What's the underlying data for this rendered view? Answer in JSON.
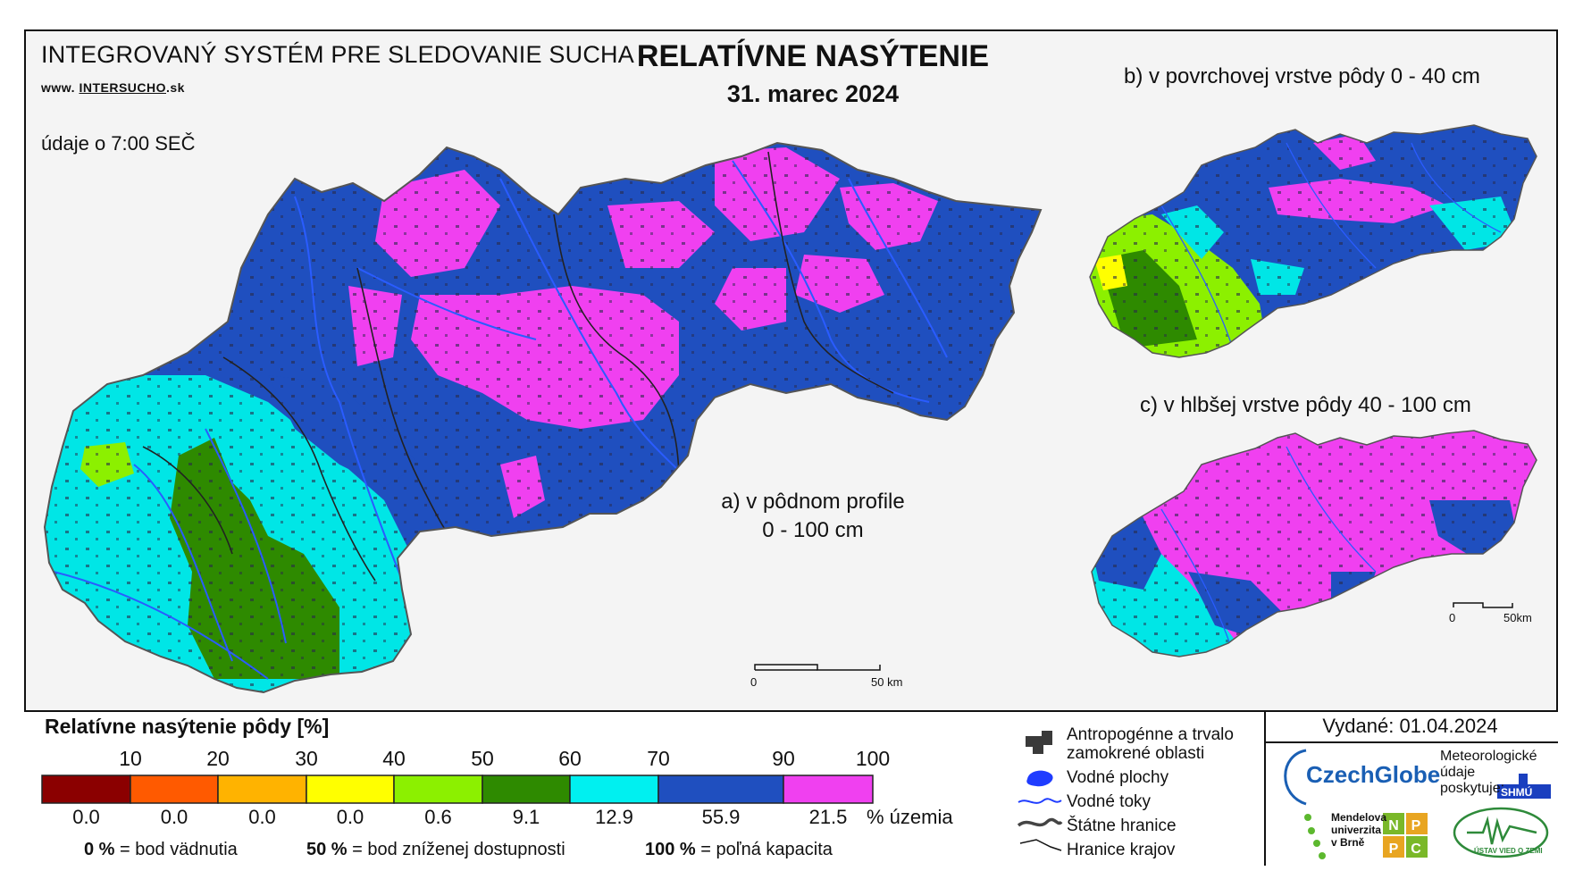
{
  "header": {
    "system_title": "INTEGROVANÝ SYSTÉM PRE SLEDOVANIE SUCHA",
    "website_prefix": "www.",
    "website_name": "INTERSUCHO",
    "website_suffix": ".sk",
    "observation_time": "údaje o 7:00 SEČ"
  },
  "title": {
    "main": "RELATÍVNE NASÝTENIE",
    "date": "31. marec 2024"
  },
  "maps": {
    "a_label_line1": "a) v pôdnom profile",
    "a_label_line2": "0 - 100 cm",
    "b_label": "b) v povrchovej vrstve pôdy 0 - 40 cm",
    "c_label": "c) v hlbšej vrstve pôdy 40 - 100 cm",
    "scale_main_zero": "0",
    "scale_main_km": "50 km",
    "scale_small_zero": "0",
    "scale_small_km": "50km"
  },
  "legend": {
    "title": "Relatívne nasýtenie pôdy [%]",
    "ticks": [
      "10",
      "20",
      "30",
      "40",
      "50",
      "60",
      "70",
      "90",
      "100"
    ],
    "classes": [
      {
        "color": "#8b0000",
        "share": "0.0"
      },
      {
        "color": "#ff5a00",
        "share": "0.0"
      },
      {
        "color": "#ffb300",
        "share": "0.0"
      },
      {
        "color": "#ffff00",
        "share": "0.0"
      },
      {
        "color": "#8cf000",
        "share": "0.6"
      },
      {
        "color": "#2e8a00",
        "share": "9.1"
      },
      {
        "color": "#00f0f0",
        "share": "12.9"
      },
      {
        "color": "#1f4fbf",
        "share": "55.9"
      },
      {
        "color": "#f040f0",
        "share": "21.5"
      }
    ],
    "share_unit": "% územia",
    "note1_value": "0 %",
    "note1_text": "= bod vädnutia",
    "note2_value": "50 %",
    "note2_text": "= bod zníženej dostupnosti",
    "note3_value": "100 %",
    "note3_text": "= poľná kapacita"
  },
  "symbols": {
    "anthropogenic_line1": "Antropogénne a trvalo",
    "anthropogenic_line2": "zamokrené oblasti",
    "water_bodies": "Vodné plochy",
    "water_streams": "Vodné toky",
    "state_border": "Štátne hranice",
    "region_border": "Hranice krajov"
  },
  "footer": {
    "issued": "Vydané: 01.04.2024",
    "czechglobe": "CzechGlobe",
    "met_line1": "Meteorologické",
    "met_line2": "údaje",
    "met_line3": "poskytuje:",
    "shmu": "SHMÚ",
    "mendel_line1": "Mendelova",
    "mendel_line2": "univerzita",
    "mendel_line3": "v Brně",
    "nppc": [
      "N",
      "P",
      "P",
      "C"
    ],
    "ustav": "ÚSTAV VIED O ZEMI"
  },
  "colors": {
    "magenta": "#f040f0",
    "blue": "#1f4fbf",
    "cyan": "#00f0f0",
    "dark_green": "#2e8a00",
    "light_green": "#8cf000",
    "yellow": "#ffff00",
    "water": "#1f3cff"
  }
}
